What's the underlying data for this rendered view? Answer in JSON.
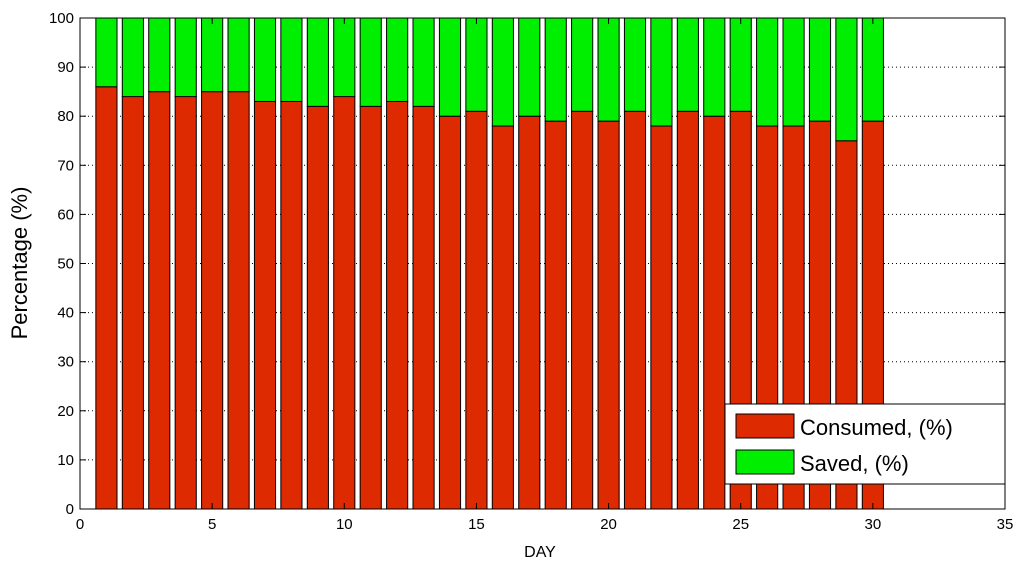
{
  "chart_data": {
    "type": "bar",
    "stacked": true,
    "title": "",
    "xlabel": "DAY",
    "ylabel": "Percentage (%)",
    "xlim": [
      0,
      35
    ],
    "ylim": [
      0,
      100
    ],
    "xticks": [
      0,
      5,
      10,
      15,
      20,
      25,
      30,
      35
    ],
    "yticks": [
      0,
      10,
      20,
      30,
      40,
      50,
      60,
      70,
      80,
      90,
      100
    ],
    "grid": "dotted y gridlines",
    "legend_position": "bottom-right",
    "x": [
      1,
      2,
      3,
      4,
      5,
      6,
      7,
      8,
      9,
      10,
      11,
      12,
      13,
      14,
      15,
      16,
      17,
      18,
      19,
      20,
      21,
      22,
      23,
      24,
      25,
      26,
      27,
      28,
      29,
      30
    ],
    "series": [
      {
        "name": "Consumed, (%)",
        "color": "#dd2a00",
        "values": [
          86,
          84,
          85,
          84,
          85,
          85,
          83,
          83,
          82,
          84,
          82,
          83,
          82,
          80,
          81,
          78,
          80,
          79,
          81,
          79,
          81,
          78,
          81,
          80,
          81,
          78,
          78,
          79,
          75,
          79
        ]
      },
      {
        "name": "Saved, (%)",
        "color": "#00ee00",
        "values": [
          14,
          16,
          15,
          16,
          15,
          15,
          17,
          17,
          18,
          16,
          18,
          17,
          18,
          20,
          19,
          22,
          20,
          21,
          19,
          21,
          19,
          22,
          19,
          20,
          19,
          22,
          22,
          21,
          25,
          21
        ]
      }
    ]
  }
}
